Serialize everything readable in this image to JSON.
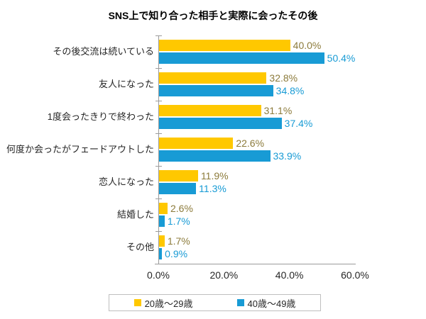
{
  "chart_data": {
    "type": "bar",
    "orientation": "horizontal",
    "title": "SNS上で知り合った相手と実際に会ったその後",
    "categories": [
      "その後交流は続いている",
      "友人になった",
      "1度会ったきりで終わった",
      "何度か会ったがフェードアウトした",
      "恋人になった",
      "結婚した",
      "その他"
    ],
    "series": [
      {
        "name": "20歳～29歳",
        "color": "#FFC800",
        "label_color": "#8C7B3B",
        "values": [
          40.0,
          32.8,
          31.1,
          22.6,
          11.9,
          2.6,
          1.7
        ]
      },
      {
        "name": "40歳～49歳",
        "color": "#189BD5",
        "label_color": "#189BD5",
        "values": [
          50.4,
          34.8,
          37.4,
          33.9,
          11.3,
          1.7,
          0.9
        ]
      }
    ],
    "value_labels": [
      [
        "40.0%",
        "32.8%",
        "31.1%",
        "22.6%",
        "11.9%",
        "2.6%",
        "1.7%"
      ],
      [
        "50.4%",
        "34.8%",
        "37.4%",
        "33.9%",
        "11.3%",
        "1.7%",
        "0.9%"
      ]
    ],
    "xlim": [
      0,
      60
    ],
    "x_ticks": [
      "0.0%",
      "20.0%",
      "40.0%",
      "60.0%"
    ],
    "legend_position": "bottom",
    "grid": false,
    "axis_color": "#9b9b9b",
    "background": "#ffffff"
  }
}
